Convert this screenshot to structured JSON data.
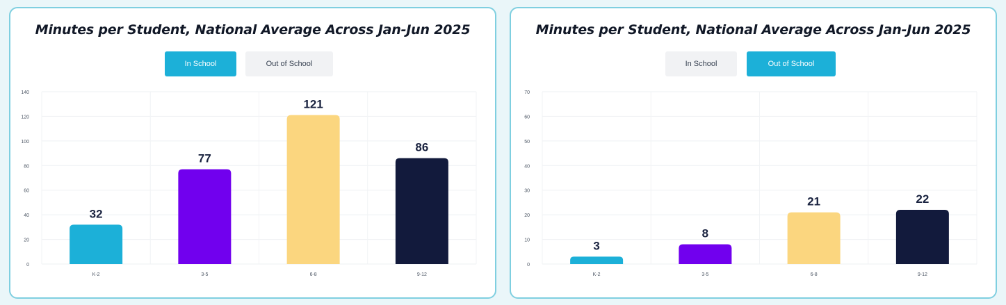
{
  "colors": {
    "k2": "#1cb0d8",
    "g35": "#7100ee",
    "g68": "#fbd67f",
    "g912": "#121a3c",
    "active_tab": "#1cb0d8",
    "inactive_tab": "#f1f2f4",
    "panel_border": "#7fcfe0"
  },
  "chart_data": [
    {
      "type": "bar",
      "title": "Minutes per Student, National Average Across Jan-Jun 2025",
      "tabs": [
        {
          "label": "In School",
          "active": true
        },
        {
          "label": "Out of School",
          "active": false
        }
      ],
      "categories": [
        "K-2",
        "3-5",
        "6-8",
        "9-12"
      ],
      "values": [
        32,
        77,
        121,
        86
      ],
      "ylim": [
        0,
        140
      ],
      "yticks": [
        0,
        20,
        40,
        60,
        80,
        100,
        120,
        140
      ],
      "grid": true,
      "xlabel": "",
      "ylabel": ""
    },
    {
      "type": "bar",
      "title": "Minutes per Student, National Average Across Jan-Jun 2025",
      "tabs": [
        {
          "label": "In School",
          "active": false
        },
        {
          "label": "Out of School",
          "active": true
        }
      ],
      "categories": [
        "K-2",
        "3-5",
        "6-8",
        "9-12"
      ],
      "values": [
        3,
        8,
        21,
        22
      ],
      "ylim": [
        0,
        70
      ],
      "yticks": [
        0,
        10,
        20,
        30,
        40,
        50,
        60,
        70
      ],
      "grid": true,
      "xlabel": "",
      "ylabel": ""
    }
  ]
}
